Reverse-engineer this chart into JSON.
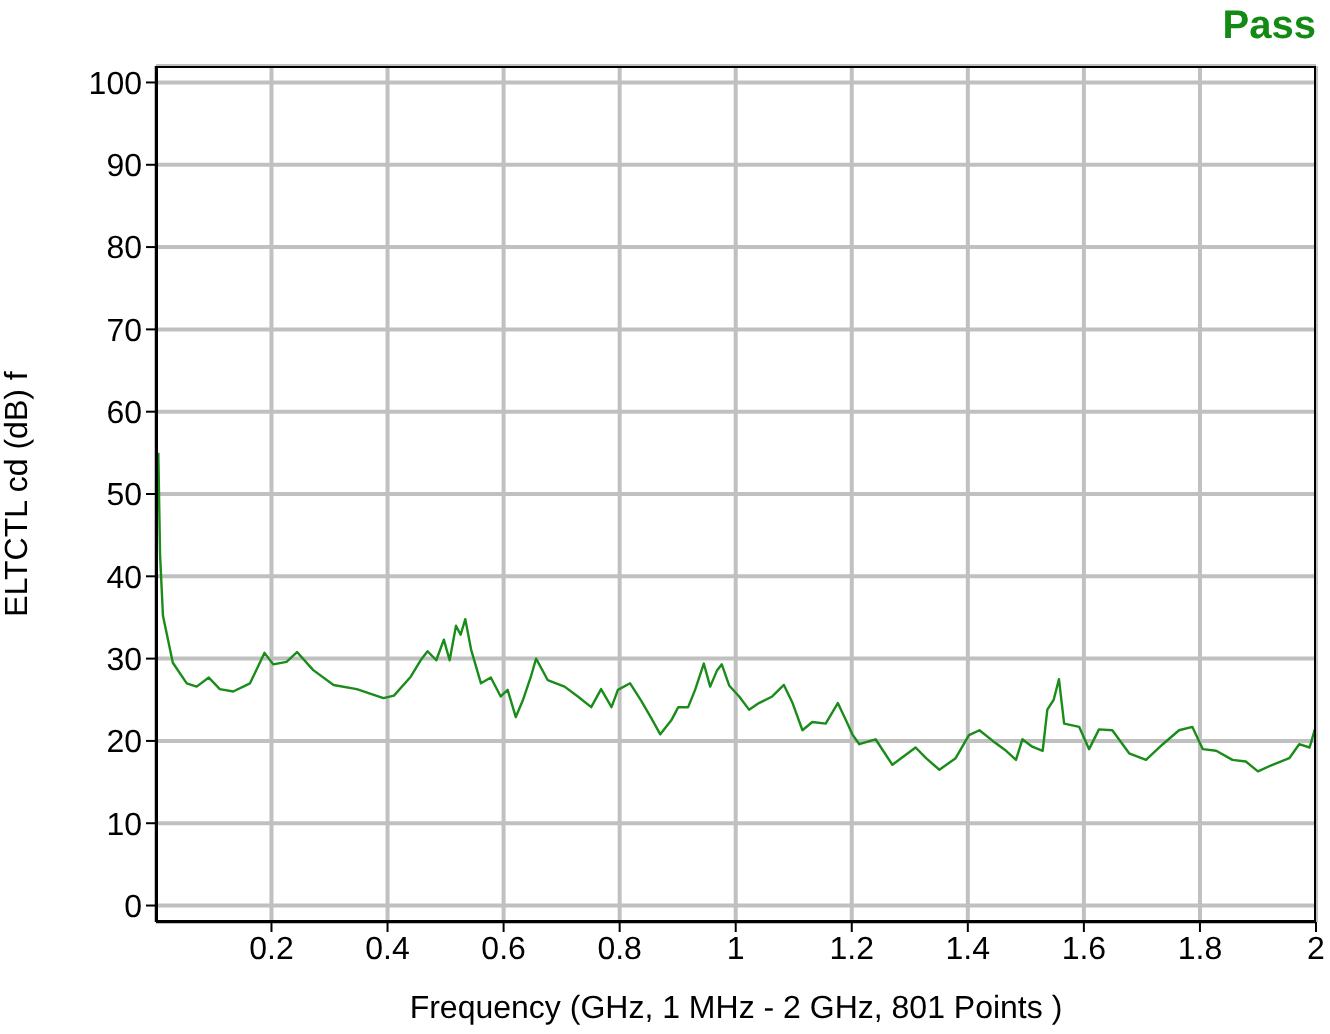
{
  "chart_data": {
    "type": "line",
    "annotations": [
      "Pass"
    ],
    "xlabel": "Frequency (GHz, 1 MHz - 2 GHz, 801 Points )",
    "ylabel": "ELTCTL cd (dB) f",
    "xlim": [
      0.001,
      2
    ],
    "xticks": [
      0.2,
      0.4,
      0.6,
      0.8,
      1,
      1.2,
      1.4,
      1.6,
      1.8,
      2
    ],
    "ylim": [
      -2,
      102
    ],
    "yticks": [
      0,
      10,
      20,
      30,
      40,
      50,
      60,
      70,
      80,
      90,
      100
    ],
    "grid": true,
    "marker": "none",
    "line_style": "solid",
    "series": [
      {
        "color": "#1a8c1a",
        "x": [
          0.005,
          0.008,
          0.013,
          0.03,
          0.054,
          0.071,
          0.092,
          0.111,
          0.134,
          0.163,
          0.188,
          0.203,
          0.226,
          0.244,
          0.272,
          0.307,
          0.347,
          0.393,
          0.411,
          0.44,
          0.457,
          0.469,
          0.484,
          0.497,
          0.507,
          0.518,
          0.526,
          0.534,
          0.544,
          0.561,
          0.578,
          0.595,
          0.607,
          0.621,
          0.633,
          0.647,
          0.656,
          0.676,
          0.705,
          0.728,
          0.751,
          0.768,
          0.786,
          0.797,
          0.818,
          0.837,
          0.855,
          0.87,
          0.889,
          0.901,
          0.918,
          0.93,
          0.945,
          0.956,
          0.968,
          0.976,
          0.989,
          1.006,
          1.023,
          1.04,
          1.063,
          1.083,
          1.098,
          1.115,
          1.132,
          1.155,
          1.176,
          1.19,
          1.201,
          1.213,
          1.241,
          1.27,
          1.31,
          1.328,
          1.351,
          1.379,
          1.402,
          1.42,
          1.443,
          1.466,
          1.483,
          1.494,
          1.511,
          1.529,
          1.537,
          1.548,
          1.557,
          1.566,
          1.592,
          1.609,
          1.626,
          1.649,
          1.678,
          1.707,
          1.736,
          1.764,
          1.787,
          1.805,
          1.828,
          1.856,
          1.879,
          1.9,
          1.925,
          1.954,
          1.971,
          1.989,
          1.998
        ],
        "values": [
          55,
          42.6,
          35.2,
          29.5,
          27,
          26.6,
          27.7,
          26.3,
          26,
          27,
          30.7,
          29.3,
          29.6,
          30.8,
          28.6,
          26.8,
          26.3,
          25.2,
          25.5,
          27.8,
          29.8,
          30.9,
          29.8,
          32.3,
          29.8,
          34,
          32.9,
          34.8,
          31.1,
          27,
          27.7,
          25.4,
          26.2,
          22.9,
          24.9,
          27.8,
          30,
          27.4,
          26.6,
          25.4,
          24.1,
          26.3,
          24.1,
          26.2,
          27,
          24.9,
          22.7,
          20.8,
          22.5,
          24.1,
          24.1,
          26.2,
          29.4,
          26.6,
          28.6,
          29.3,
          26.7,
          25.4,
          23.8,
          24.6,
          25.4,
          26.8,
          24.6,
          21.3,
          22.3,
          22.1,
          24.6,
          22.5,
          20.8,
          19.6,
          20.2,
          17.1,
          19.2,
          17.9,
          16.5,
          17.9,
          20.7,
          21.3,
          20,
          18.8,
          17.7,
          20.2,
          19.3,
          18.8,
          23.8,
          25,
          27.5,
          22.1,
          21.7,
          19,
          21.4,
          21.3,
          18.5,
          17.7,
          19.6,
          21.3,
          21.7,
          19,
          18.8,
          17.7,
          17.5,
          16.3,
          17.1,
          17.9,
          19.6,
          19.2,
          21.4
        ]
      }
    ]
  }
}
